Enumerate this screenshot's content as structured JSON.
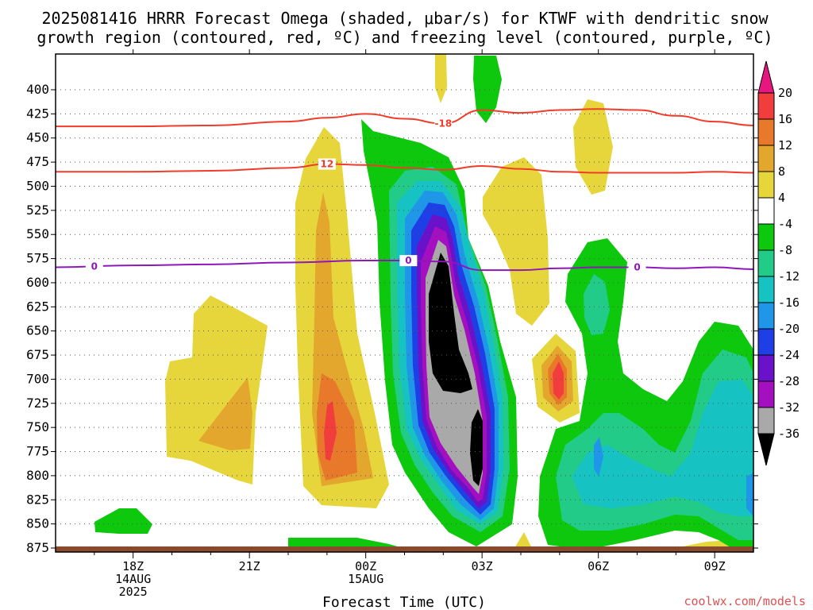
{
  "chart_data": {
    "type": "heatmap",
    "title_line1": "2025081416 HRRR Forecast Omega (shaded, μbar/s) for KTWF with dendritic snow",
    "title_line2": "growth region (contoured, red, ºC) and freezing level (contoured, purple, ºC)",
    "xlabel": "Forecast Time (UTC)",
    "ylabel": "",
    "credit": "coolwx.com/models",
    "y_axis": {
      "unit": "hPa",
      "ticks": [
        "400",
        "425",
        "450",
        "475",
        "500",
        "525",
        "550",
        "575",
        "600",
        "625",
        "650",
        "675",
        "700",
        "725",
        "750",
        "775",
        "800",
        "825",
        "850",
        "875"
      ],
      "ylim": [
        385,
        880
      ],
      "grid": true
    },
    "x_axis": {
      "unit": "hours from 14AUG 16Z",
      "ticks": [
        {
          "h": 2,
          "lines": [
            "18Z",
            "14AUG",
            "2025"
          ]
        },
        {
          "h": 5,
          "lines": [
            "21Z"
          ]
        },
        {
          "h": 8,
          "lines": [
            "00Z",
            "15AUG"
          ]
        },
        {
          "h": 11,
          "lines": [
            "03Z"
          ]
        },
        {
          "h": 14,
          "lines": [
            "06Z"
          ]
        },
        {
          "h": 17,
          "lines": [
            "09Z"
          ]
        }
      ],
      "xlim": [
        0,
        18
      ]
    },
    "colorbar": {
      "levels": [
        "20",
        "16",
        "12",
        "8",
        "4",
        "-4",
        "-8",
        "-12",
        "-16",
        "-20",
        "-24",
        "-28",
        "-32",
        "-36"
      ],
      "colors": {
        "top_arrow": "#e8167f",
        "16_20": "#f23d3d",
        "12_16": "#e8792a",
        "8_12": "#e3a72e",
        "4_8": "#e6d63c",
        "m4_4": "#ffffff",
        "m8_m4": "#0dc80d",
        "m12_m8": "#22cc88",
        "m16_m12": "#17c2c2",
        "m20_m16": "#1f96e8",
        "m24_m20": "#1f3fe6",
        "m28_m24": "#6a12c9",
        "m32_m28": "#a40fc0",
        "m36_m32": "#a9a9a9",
        "bottom_arrow": "#000000"
      }
    },
    "contours": {
      "dgz_color": "#f03c2a",
      "freezing_color": "#8f17b8",
      "dgz_minus18": {
        "label": "-18",
        "h": [
          0,
          2,
          4,
          6,
          7,
          8,
          9,
          10,
          11,
          12,
          13,
          14,
          15,
          16,
          17,
          18
        ],
        "p": [
          438,
          438,
          437,
          433,
          429,
          425,
          430,
          435,
          421,
          424,
          421,
          420,
          421,
          427,
          433,
          437
        ]
      },
      "dgz_minus12": {
        "label": "12",
        "h": [
          0,
          2,
          4,
          6,
          7,
          8,
          9,
          10,
          11,
          12,
          13,
          14,
          15,
          16,
          17,
          18
        ],
        "p": [
          485,
          485,
          484,
          481,
          477,
          478,
          481,
          483,
          479,
          482,
          485,
          486,
          486,
          486,
          485,
          486
        ]
      },
      "freezing_0": {
        "label": "0",
        "h": [
          0,
          2,
          4,
          6,
          8,
          9,
          10,
          11,
          12,
          13,
          14,
          15,
          16,
          17,
          18
        ],
        "p": [
          584,
          582,
          581,
          579,
          577,
          577,
          578,
          587,
          587,
          585,
          584,
          584,
          585,
          584,
          586
        ]
      }
    },
    "terrain_color": "#8b4a2b"
  }
}
